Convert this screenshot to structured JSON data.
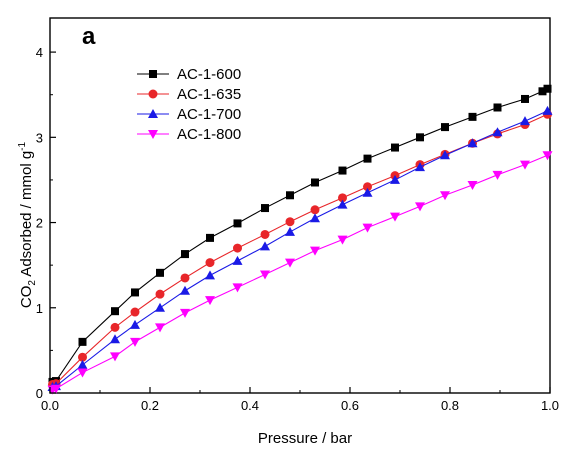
{
  "chart_data": {
    "type": "line",
    "panel_label": "a",
    "xlabel": "Pressure / bar",
    "ylabel": {
      "prefix": "CO",
      "subscript": "2",
      "rest": " Adsorbed / mmol g",
      "superscript": "-1"
    },
    "xlim": [
      0,
      1
    ],
    "ylim": [
      0,
      4.4
    ],
    "xticks": [
      0,
      0.2,
      0.4,
      0.6,
      0.8,
      1.0
    ],
    "xtick_labels": [
      "0.0",
      "0.2",
      "0.4",
      "0.6",
      "0.8",
      "1.0"
    ],
    "yticks": [
      0,
      1,
      2,
      3,
      4
    ],
    "ytick_labels": [
      "0",
      "1",
      "2",
      "3",
      "4"
    ],
    "grid": false,
    "legend_position": "top-left",
    "series": [
      {
        "name": "AC-1-600",
        "color": "#000000",
        "marker": "square",
        "x": [
          0.005,
          0.012,
          0.065,
          0.13,
          0.17,
          0.22,
          0.27,
          0.32,
          0.375,
          0.43,
          0.48,
          0.53,
          0.585,
          0.635,
          0.69,
          0.74,
          0.79,
          0.845,
          0.895,
          0.95,
          0.985,
          0.995
        ],
        "y": [
          0.13,
          0.14,
          0.6,
          0.96,
          1.18,
          1.41,
          1.63,
          1.82,
          1.99,
          2.17,
          2.32,
          2.47,
          2.61,
          2.75,
          2.88,
          3.0,
          3.12,
          3.24,
          3.35,
          3.45,
          3.54,
          3.57
        ]
      },
      {
        "name": "AC-1-635",
        "color": "#e8262a",
        "marker": "circle",
        "x": [
          0.005,
          0.012,
          0.065,
          0.13,
          0.17,
          0.22,
          0.27,
          0.32,
          0.375,
          0.43,
          0.48,
          0.53,
          0.585,
          0.635,
          0.69,
          0.74,
          0.79,
          0.845,
          0.895,
          0.95,
          0.995
        ],
        "y": [
          0.1,
          0.11,
          0.42,
          0.77,
          0.95,
          1.16,
          1.35,
          1.53,
          1.7,
          1.86,
          2.01,
          2.15,
          2.29,
          2.42,
          2.55,
          2.68,
          2.8,
          2.93,
          3.04,
          3.15,
          3.27
        ]
      },
      {
        "name": "AC-1-700",
        "color": "#1a1ae6",
        "marker": "triangle-up",
        "x": [
          0.005,
          0.012,
          0.065,
          0.13,
          0.17,
          0.22,
          0.27,
          0.32,
          0.375,
          0.43,
          0.48,
          0.53,
          0.585,
          0.635,
          0.69,
          0.74,
          0.79,
          0.845,
          0.895,
          0.95,
          0.995
        ],
        "y": [
          0.07,
          0.08,
          0.33,
          0.63,
          0.8,
          1.0,
          1.2,
          1.38,
          1.55,
          1.72,
          1.89,
          2.05,
          2.21,
          2.35,
          2.5,
          2.65,
          2.79,
          2.93,
          3.06,
          3.19,
          3.31
        ]
      },
      {
        "name": "AC-1-800",
        "color": "#ff00ff",
        "marker": "triangle-down",
        "x": [
          0.005,
          0.012,
          0.065,
          0.13,
          0.17,
          0.22,
          0.27,
          0.32,
          0.375,
          0.43,
          0.48,
          0.53,
          0.585,
          0.635,
          0.69,
          0.74,
          0.79,
          0.845,
          0.895,
          0.95,
          0.995
        ],
        "y": [
          0.04,
          0.05,
          0.24,
          0.43,
          0.6,
          0.77,
          0.94,
          1.09,
          1.24,
          1.39,
          1.53,
          1.67,
          1.8,
          1.94,
          2.07,
          2.19,
          2.32,
          2.44,
          2.56,
          2.68,
          2.79
        ]
      }
    ]
  }
}
